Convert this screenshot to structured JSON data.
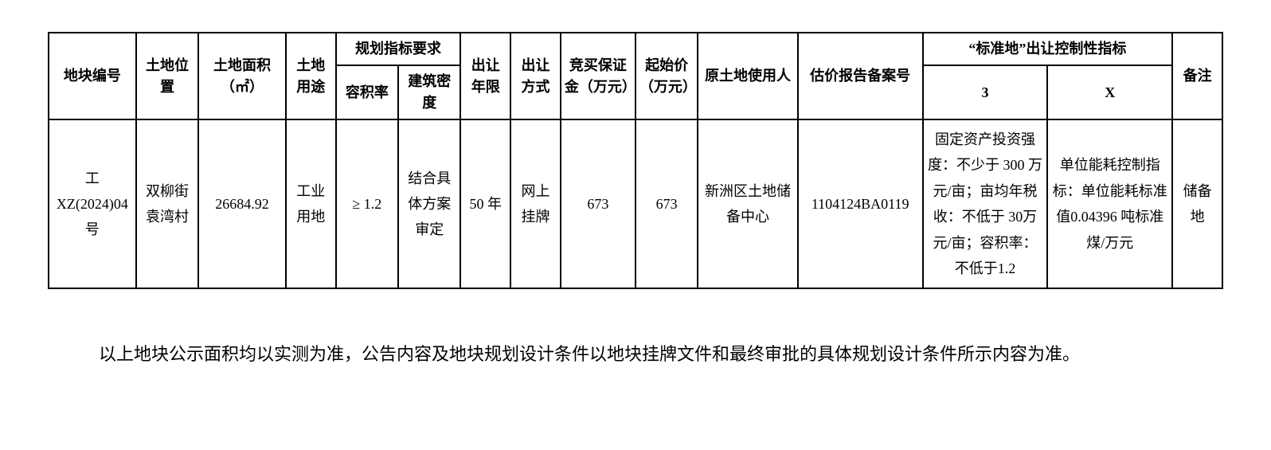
{
  "table": {
    "headers": {
      "block_id": "地块编号",
      "location": "土地位置",
      "area": "土地面积（㎡）",
      "use": "土地用途",
      "planning_group": "规划指标要求",
      "far": "容积率",
      "density": "建筑密度",
      "term": "出让年限",
      "method": "出让方式",
      "deposit": "竞买保证金（万元）",
      "start_price": "起始价（万元）",
      "orig_user": "原土地使用人",
      "appraisal_no": "估价报告备案号",
      "standard_group": "“标准地”出让控制性指标",
      "std_3": "3",
      "std_x": "X",
      "remark": "备注"
    },
    "row": {
      "block_id": "工XZ(2024)04 号",
      "location": "双柳街袁湾村",
      "area": "26684.92",
      "use": "工业用地",
      "far": "≥ 1.2",
      "density": "结合具体方案审定",
      "term": "50 年",
      "method": "网上挂牌",
      "deposit": "673",
      "start_price": "673",
      "orig_user": "新洲区土地储备中心",
      "appraisal_no": "1104124BA0119",
      "std_3": "固定资产投资强度：不少于 300 万元/亩；亩均年税收：不低于 30万元/亩；容积率：不低于1.2",
      "std_x": "单位能耗控制指标：单位能耗标准值0.04396 吨标准煤/万元",
      "remark": "储备地"
    }
  },
  "footer_note": "以上地块公示面积均以实测为准，公告内容及地块规划设计条件以地块挂牌文件和最终审批的具体规划设计条件所示内容为准。"
}
